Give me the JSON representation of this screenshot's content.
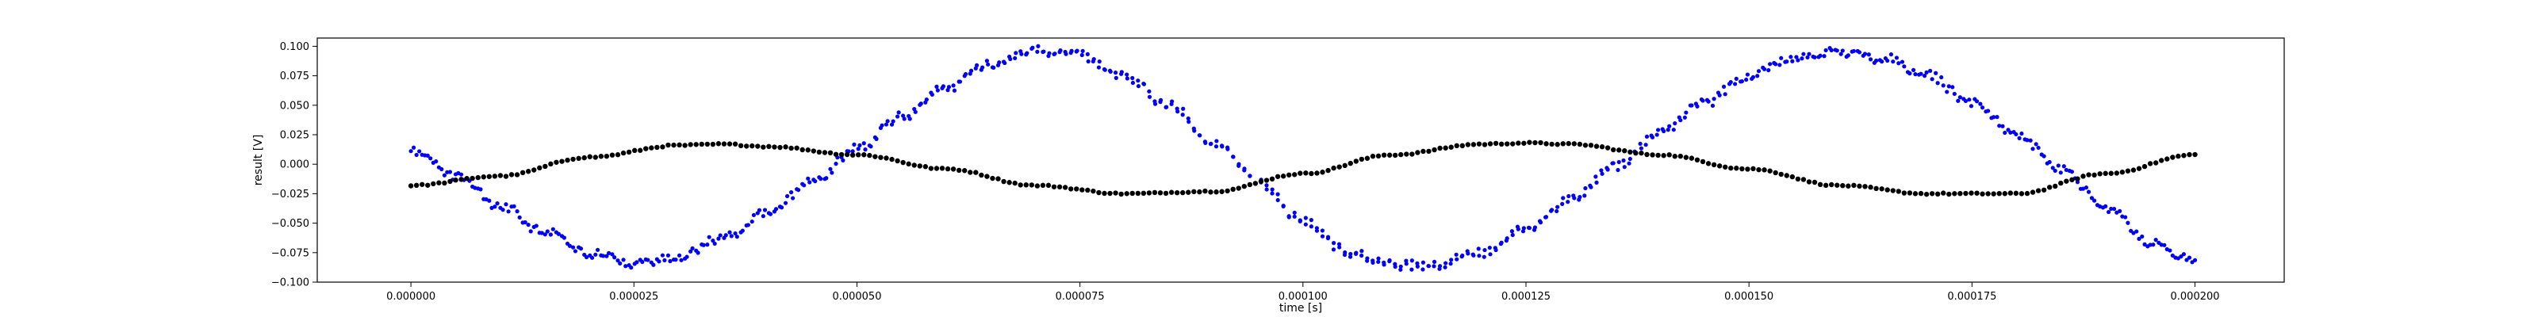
{
  "chart_data": {
    "type": "scatter",
    "title": "",
    "xlabel": "time [s]",
    "ylabel": "result [V]",
    "xlim": [
      -1.05e-05,
      0.00021
    ],
    "ylim": [
      -0.1,
      0.107
    ],
    "x_ticks": [
      0.0,
      2.5e-05,
      5e-05,
      7.5e-05,
      0.0001,
      0.000125,
      0.00015,
      0.000175,
      0.0002
    ],
    "x_tick_labels": [
      "0.000000",
      "0.000025",
      "0.000050",
      "0.000075",
      "0.000100",
      "0.000125",
      "0.000150",
      "0.000175",
      "0.000200"
    ],
    "y_ticks": [
      -0.1,
      -0.075,
      -0.05,
      -0.025,
      0.0,
      0.025,
      0.05,
      0.075,
      0.1
    ],
    "y_tick_labels": [
      "−0.100",
      "−0.075",
      "−0.050",
      "−0.025",
      "0.000",
      "0.025",
      "0.050",
      "0.075",
      "0.100"
    ],
    "grid": false,
    "series": [
      {
        "color": "#0000ff",
        "marker": "dot",
        "points_per_curve": 320,
        "description_x_range": [
          0.0,
          0.0002
        ],
        "points": [
          [
            0.0,
            0.01
          ],
          [
            5e-06,
            -0.01
          ],
          [
            1e-05,
            -0.035
          ],
          [
            1.5e-05,
            -0.058
          ],
          [
            2e-05,
            -0.075
          ],
          [
            2.5e-05,
            -0.084
          ],
          [
            3e-05,
            -0.078
          ],
          [
            3.5e-05,
            -0.062
          ],
          [
            4e-05,
            -0.04
          ],
          [
            4.5e-05,
            -0.014
          ],
          [
            5e-05,
            0.013
          ],
          [
            5.5e-05,
            0.04
          ],
          [
            6e-05,
            0.065
          ],
          [
            6.5e-05,
            0.085
          ],
          [
            7e-05,
            0.096
          ],
          [
            7.5e-05,
            0.092
          ],
          [
            8e-05,
            0.075
          ],
          [
            8.5e-05,
            0.05
          ],
          [
            9e-05,
            0.018
          ],
          [
            9.5e-05,
            -0.015
          ],
          [
            0.0001,
            -0.048
          ],
          [
            0.000105,
            -0.074
          ],
          [
            0.00011,
            -0.085
          ],
          [
            0.000115,
            -0.085
          ],
          [
            0.00012,
            -0.075
          ],
          [
            0.000125,
            -0.055
          ],
          [
            0.00013,
            -0.03
          ],
          [
            0.000135,
            -0.002
          ],
          [
            0.00014,
            0.026
          ],
          [
            0.000145,
            0.052
          ],
          [
            0.00015,
            0.075
          ],
          [
            0.000155,
            0.09
          ],
          [
            0.00016,
            0.095
          ],
          [
            0.000165,
            0.09
          ],
          [
            0.00017,
            0.075
          ],
          [
            0.000175,
            0.052
          ],
          [
            0.00018,
            0.025
          ],
          [
            0.000185,
            -0.005
          ],
          [
            0.00019,
            -0.037
          ],
          [
            0.000195,
            -0.066
          ],
          [
            0.0002,
            -0.082
          ]
        ]
      },
      {
        "color": "#000000",
        "marker": "dot",
        "points_per_curve": 320,
        "points": [
          [
            0.0,
            -0.018
          ],
          [
            1e-05,
            -0.01
          ],
          [
            2e-05,
            0.006
          ],
          [
            3e-05,
            0.016
          ],
          [
            3.5e-05,
            0.017
          ],
          [
            4e-05,
            0.015
          ],
          [
            5e-05,
            0.008
          ],
          [
            6e-05,
            -0.004
          ],
          [
            7e-05,
            -0.018
          ],
          [
            8e-05,
            -0.025
          ],
          [
            9e-05,
            -0.023
          ],
          [
            0.0001,
            -0.008
          ],
          [
            0.00011,
            0.008
          ],
          [
            0.00012,
            0.017
          ],
          [
            0.000125,
            0.018
          ],
          [
            0.00013,
            0.017
          ],
          [
            0.00014,
            0.008
          ],
          [
            0.00015,
            -0.004
          ],
          [
            0.00016,
            -0.018
          ],
          [
            0.00017,
            -0.025
          ],
          [
            0.00018,
            -0.025
          ],
          [
            0.00019,
            -0.008
          ],
          [
            0.0002,
            0.008
          ]
        ]
      }
    ]
  }
}
